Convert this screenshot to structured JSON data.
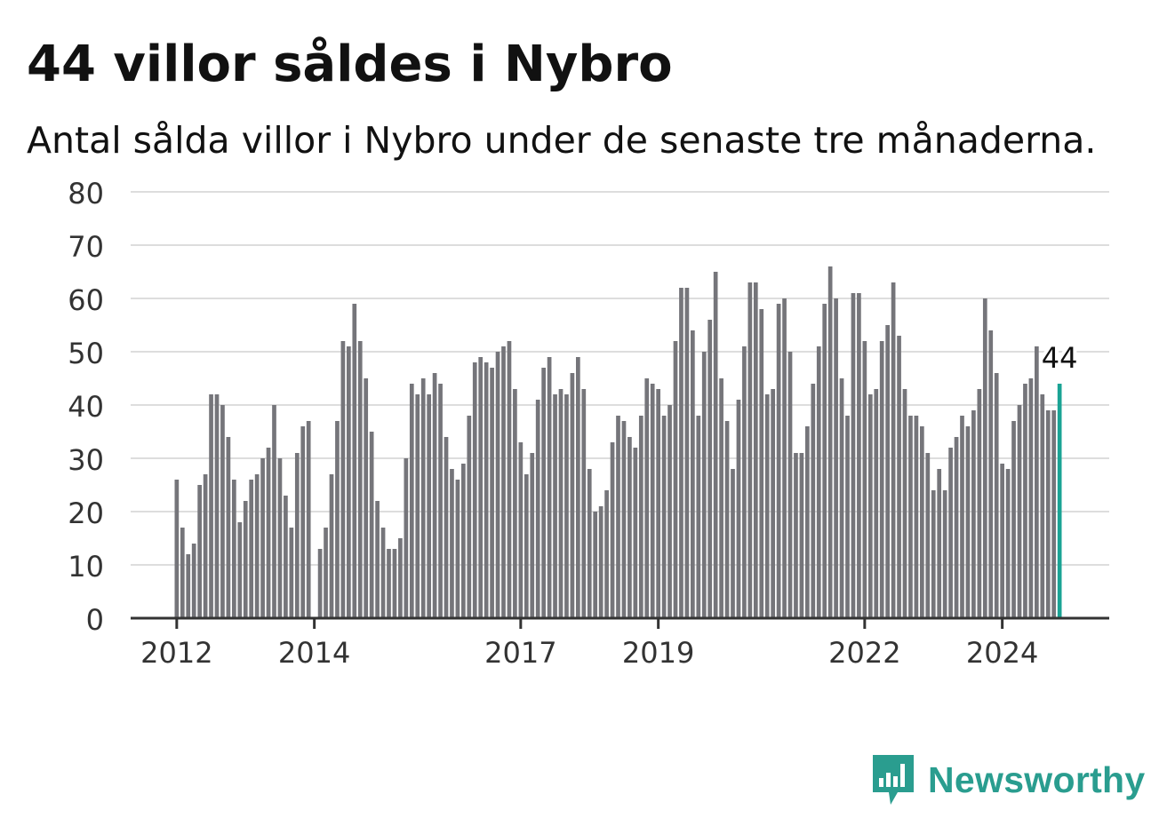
{
  "title": "44 villor såldes i Nybro",
  "subtitle": "Antal sålda villor i Nybro under de senaste tre månaderna.",
  "brand": {
    "name": "Newsworthy",
    "icon": "newsworthy-logo-icon",
    "color": "#2a9d8f"
  },
  "colors": {
    "bar": "#75757a",
    "highlight": "#1aa394",
    "grid": "#dddddd",
    "axis": "#333333"
  },
  "chart_data": {
    "type": "bar",
    "ylim": [
      0,
      80
    ],
    "yticks": [
      0,
      10,
      20,
      30,
      40,
      50,
      60,
      70,
      80
    ],
    "grid": true,
    "xticks": [
      {
        "label": "2012",
        "index": 0
      },
      {
        "label": "2014",
        "index": 24
      },
      {
        "label": "2017",
        "index": 60
      },
      {
        "label": "2019",
        "index": 84
      },
      {
        "label": "2022",
        "index": 120
      },
      {
        "label": "2024",
        "index": 144
      }
    ],
    "values": [
      26,
      17,
      12,
      14,
      25,
      27,
      42,
      42,
      40,
      34,
      26,
      18,
      22,
      26,
      27,
      30,
      32,
      40,
      30,
      23,
      17,
      31,
      36,
      37,
      null,
      13,
      17,
      27,
      37,
      52,
      51,
      59,
      52,
      45,
      35,
      22,
      17,
      13,
      13,
      15,
      30,
      44,
      42,
      45,
      42,
      46,
      44,
      34,
      28,
      26,
      29,
      38,
      48,
      49,
      48,
      47,
      50,
      51,
      52,
      43,
      33,
      27,
      31,
      41,
      47,
      49,
      42,
      43,
      42,
      46,
      49,
      43,
      28,
      20,
      21,
      24,
      33,
      38,
      37,
      34,
      32,
      38,
      45,
      44,
      43,
      38,
      40,
      52,
      62,
      62,
      54,
      38,
      50,
      56,
      65,
      45,
      37,
      28,
      41,
      51,
      63,
      63,
      58,
      42,
      43,
      59,
      60,
      50,
      31,
      31,
      36,
      44,
      51,
      59,
      66,
      60,
      45,
      38,
      61,
      61,
      52,
      42,
      43,
      52,
      55,
      63,
      53,
      43,
      38,
      38,
      36,
      31,
      24,
      28,
      24,
      32,
      34,
      38,
      36,
      39,
      43,
      60,
      54,
      46,
      29,
      28,
      37,
      40,
      44,
      45,
      51,
      42,
      39,
      39,
      44
    ],
    "highlight_index": 154,
    "annotation": "44"
  }
}
